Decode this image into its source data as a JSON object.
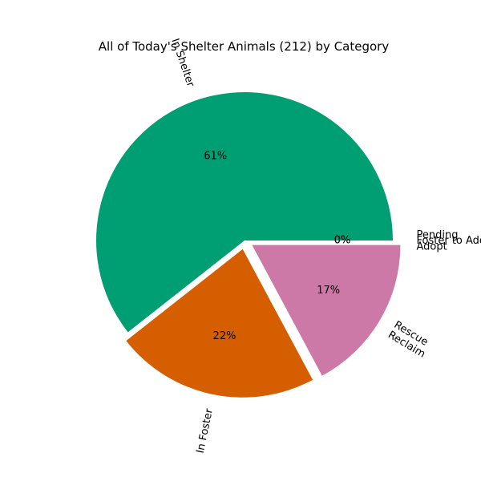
{
  "chart_data": {
    "type": "pie",
    "title": "All of Today's Shelter Animals (212) by Category",
    "total": 212,
    "autopct_format": "{p}%",
    "slices": [
      {
        "label": "In Shelter",
        "value": 60,
        "color": "#009E73",
        "explode": false
      },
      {
        "label": "In Foster",
        "value": 22,
        "color": "#D55E00",
        "explode": true
      },
      {
        "label": "Rescue\nReclaim",
        "value": 17,
        "color": "#CC79A7",
        "explode": true
      },
      {
        "label": "Pending\nAdopt",
        "value": 0,
        "color": "#0072B2",
        "explode": true
      },
      {
        "label": "Foster to Adopt",
        "value": 0,
        "color": "#E69F00",
        "explode": true
      }
    ]
  }
}
